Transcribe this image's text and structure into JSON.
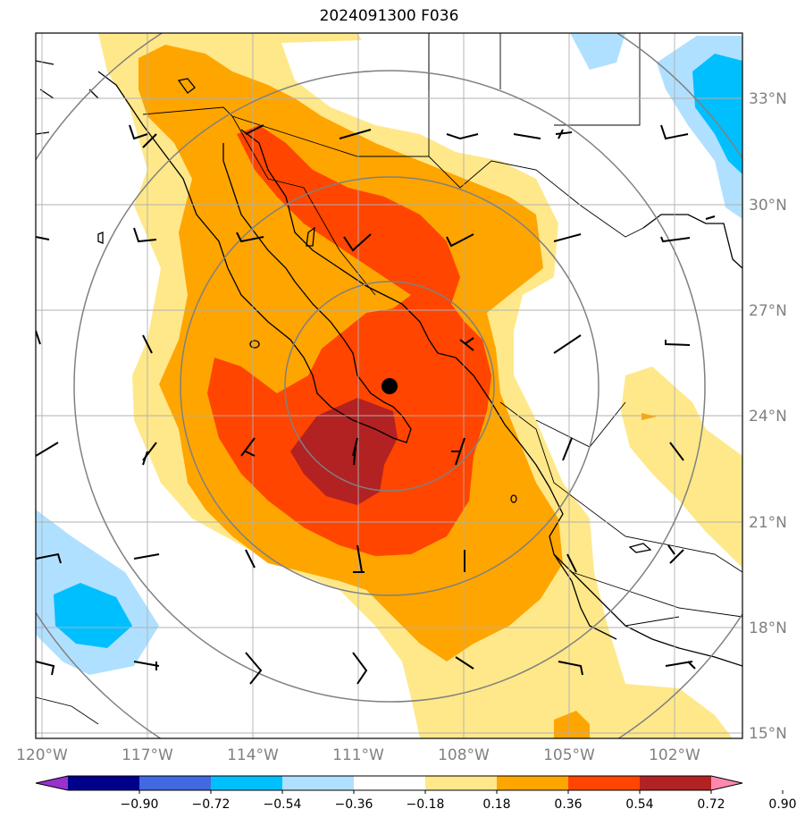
{
  "title": "2024091300 F036",
  "lat_labels": [
    "33°N",
    "30°N",
    "27°N",
    "24°N",
    "21°N",
    "18°N",
    "15°N"
  ],
  "lon_labels": [
    "120°W",
    "117°W",
    "114°W",
    "111°W",
    "108°W",
    "105°W",
    "102°W"
  ],
  "colorbar": {
    "tick_labels": [
      "−0.90",
      "−0.72",
      "−0.54",
      "−0.36",
      "−0.18",
      "0.18",
      "0.36",
      "0.54",
      "0.72",
      "0.90"
    ],
    "colors": [
      "#9932cc",
      "#00008b",
      "#4169e1",
      "#00bfff",
      "#b0e0ff",
      "#ffffff",
      "#ffe88a",
      "#ffa500",
      "#ff4500",
      "#b22222",
      "#ff88b0"
    ]
  },
  "storm_center": {
    "lat": 24.8,
    "lon": -109.9
  },
  "fill_colors": {
    "level_0_18": "#ffe88a",
    "level_0_36": "#ffa500",
    "level_0_54": "#ff4500",
    "level_0_72": "#b22222",
    "neg_0_18": "#b0e0ff",
    "neg_0_36": "#00bfff"
  }
}
